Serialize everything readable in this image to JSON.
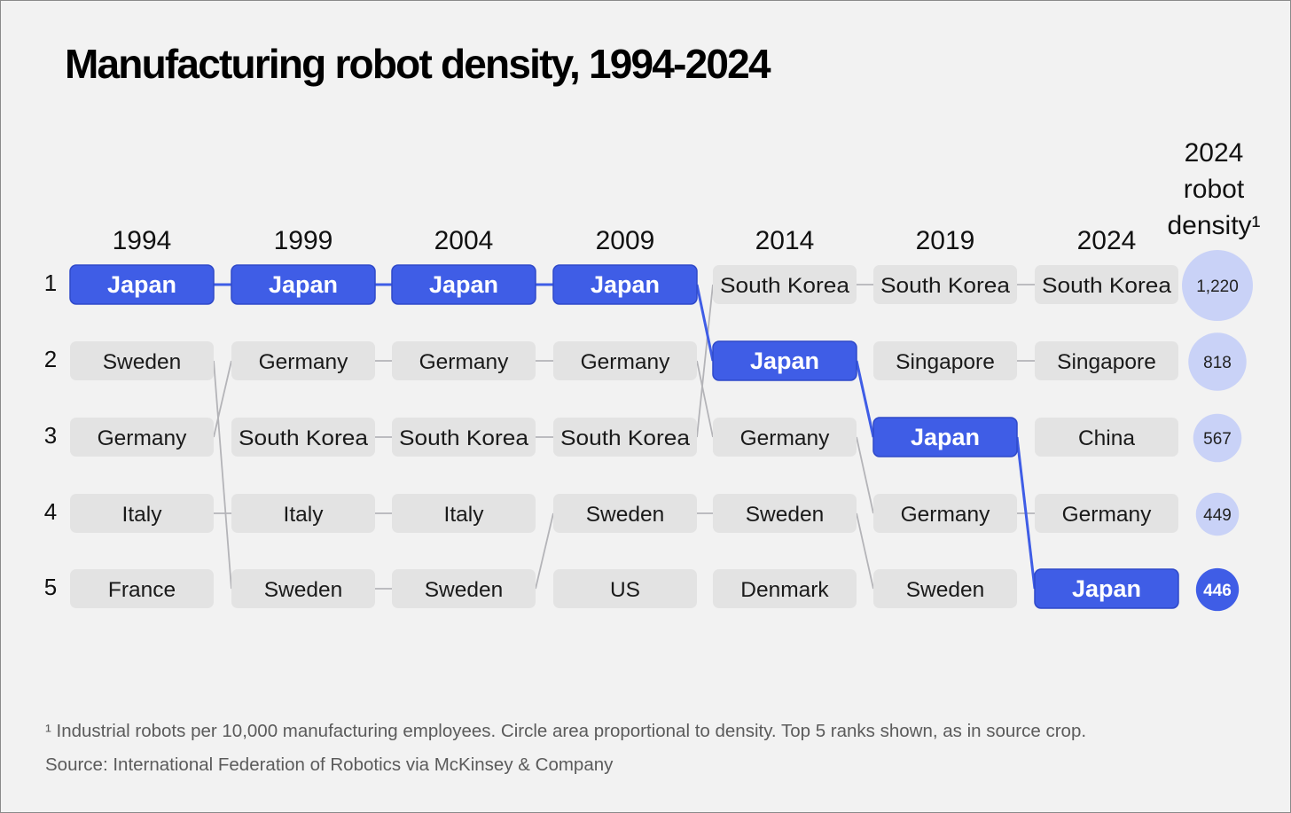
{
  "title": "Manufacturing robot density, 1994-2024",
  "footnote": "¹ Industrial robots per 10,000 manufacturing employees. Circle area proportional to density. Top 5 ranks shown, as in source crop.",
  "source": "Source: International Federation of Robotics via McKinsey & Company",
  "colors": {
    "highlight": "#3f5de6",
    "highlight_border": "#2f49c9",
    "box": "#e3e3e3",
    "link": "#b4b4b8",
    "bubble": "#c9d2f7",
    "background": "#f2f2f2"
  },
  "chart_data": {
    "type": "bump",
    "highlight": "Japan",
    "years": [
      "1994",
      "1999",
      "2004",
      "2009",
      "2014",
      "2019",
      "2024"
    ],
    "ranks": [
      "1",
      "2",
      "3",
      "4",
      "5"
    ],
    "rankings": [
      [
        "Japan",
        "Sweden",
        "Germany",
        "Italy",
        "France"
      ],
      [
        "Japan",
        "Germany",
        "South Korea",
        "Italy",
        "Sweden"
      ],
      [
        "Japan",
        "Germany",
        "South Korea",
        "Italy",
        "Sweden"
      ],
      [
        "Japan",
        "Germany",
        "South Korea",
        "Sweden",
        "US"
      ],
      [
        "South Korea",
        "Japan",
        "Germany",
        "Sweden",
        "Denmark"
      ],
      [
        "South Korea",
        "Singapore",
        "Japan",
        "Germany",
        "Sweden"
      ],
      [
        "South Korea",
        "Singapore",
        "China",
        "Germany",
        "Japan"
      ]
    ],
    "density_header": [
      "2024",
      "robot",
      "density¹"
    ],
    "density_2024": [
      {
        "country": "South Korea",
        "value": 1220,
        "label": "1,220"
      },
      {
        "country": "Singapore",
        "value": 818,
        "label": "818"
      },
      {
        "country": "China",
        "value": 567,
        "label": "567"
      },
      {
        "country": "Germany",
        "value": 449,
        "label": "449"
      },
      {
        "country": "Japan",
        "value": 446,
        "label": "446"
      }
    ]
  }
}
